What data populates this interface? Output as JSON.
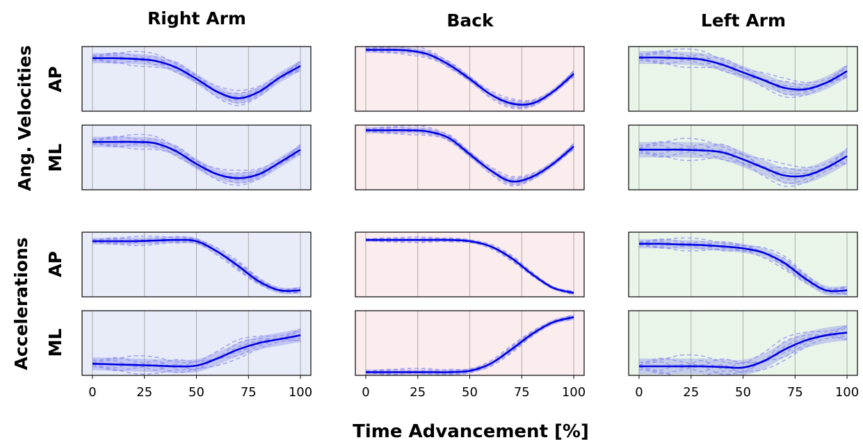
{
  "columns": [
    "Right Arm",
    "Back",
    "Left Arm"
  ],
  "group_labels": [
    "Ang. Velocities",
    "Accelerations"
  ],
  "row_labels": [
    "AP",
    "ML",
    "AP",
    "ML"
  ],
  "xlabel": "Time Advancement [%]",
  "colors": {
    "right_arm_bg": "#e8ebf8",
    "back_bg": "#fbeced",
    "left_arm_bg": "#eaf5ea",
    "mean_line": "#0000e0",
    "band": "#6a6ee6",
    "trial_lines": "#8a8cf0",
    "grid": "#9a9a9a"
  },
  "chart_data": {
    "type": "line",
    "description_of_layout": "grid of 4 rows x 3 columns",
    "x": [
      0,
      10,
      20,
      30,
      40,
      50,
      60,
      70,
      80,
      90,
      100
    ],
    "xlim": [
      -5,
      105
    ],
    "ylim": [
      0,
      1
    ],
    "xticks": [
      "0",
      "25",
      "50",
      "75",
      "100"
    ],
    "grid": "vertical only",
    "panels": [
      {
        "column": "Right Arm",
        "group": "Ang. Velocities",
        "row": "AP",
        "mean": [
          0.82,
          0.82,
          0.81,
          0.78,
          0.68,
          0.5,
          0.3,
          0.2,
          0.3,
          0.52,
          0.7
        ],
        "band": 0.08
      },
      {
        "column": "Back",
        "group": "Ang. Velocities",
        "row": "AP",
        "mean": [
          0.95,
          0.95,
          0.94,
          0.88,
          0.72,
          0.5,
          0.26,
          0.12,
          0.12,
          0.3,
          0.58
        ],
        "band": 0.05
      },
      {
        "column": "Left Arm",
        "group": "Ang. Velocities",
        "row": "AP",
        "mean": [
          0.83,
          0.83,
          0.82,
          0.8,
          0.72,
          0.6,
          0.48,
          0.36,
          0.34,
          0.44,
          0.62
        ],
        "band": 0.1
      },
      {
        "column": "Right Arm",
        "group": "Ang. Velocities",
        "row": "ML",
        "mean": [
          0.74,
          0.74,
          0.74,
          0.72,
          0.6,
          0.4,
          0.24,
          0.18,
          0.24,
          0.42,
          0.62
        ],
        "band": 0.08
      },
      {
        "column": "Back",
        "group": "Ang. Velocities",
        "row": "ML",
        "mean": [
          0.92,
          0.92,
          0.92,
          0.9,
          0.8,
          0.55,
          0.3,
          0.13,
          0.2,
          0.4,
          0.67
        ],
        "band": 0.05
      },
      {
        "column": "Left Arm",
        "group": "Ang. Velocities",
        "row": "ML",
        "mean": [
          0.62,
          0.62,
          0.62,
          0.61,
          0.58,
          0.47,
          0.34,
          0.22,
          0.22,
          0.34,
          0.52
        ],
        "band": 0.12
      },
      {
        "column": "Right Arm",
        "group": "Accelerations",
        "row": "AP",
        "mean": [
          0.86,
          0.86,
          0.86,
          0.87,
          0.88,
          0.86,
          0.7,
          0.48,
          0.24,
          0.1,
          0.1
        ],
        "band": 0.05
      },
      {
        "column": "Back",
        "group": "Accelerations",
        "row": "AP",
        "mean": [
          0.88,
          0.88,
          0.88,
          0.88,
          0.88,
          0.86,
          0.78,
          0.6,
          0.35,
          0.14,
          0.06
        ],
        "band": 0.03
      },
      {
        "column": "Left Arm",
        "group": "Accelerations",
        "row": "AP",
        "mean": [
          0.82,
          0.82,
          0.81,
          0.8,
          0.78,
          0.75,
          0.68,
          0.52,
          0.28,
          0.1,
          0.1
        ],
        "band": 0.07
      },
      {
        "column": "Right Arm",
        "group": "Accelerations",
        "row": "ML",
        "mean": [
          0.18,
          0.17,
          0.16,
          0.15,
          0.14,
          0.15,
          0.26,
          0.4,
          0.5,
          0.56,
          0.62
        ],
        "band": 0.1
      },
      {
        "column": "Back",
        "group": "Accelerations",
        "row": "ML",
        "mean": [
          0.05,
          0.05,
          0.05,
          0.05,
          0.05,
          0.07,
          0.18,
          0.4,
          0.64,
          0.82,
          0.9
        ],
        "band": 0.04
      },
      {
        "column": "Left Arm",
        "group": "Accelerations",
        "row": "ML",
        "mean": [
          0.14,
          0.14,
          0.14,
          0.14,
          0.13,
          0.12,
          0.22,
          0.4,
          0.54,
          0.62,
          0.66
        ],
        "band": 0.12
      }
    ]
  }
}
